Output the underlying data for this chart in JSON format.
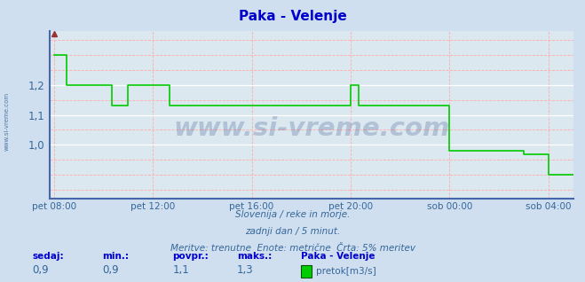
{
  "title": "Paka - Velenje",
  "title_color": "#0000cc",
  "bg_color": "#d0dff0",
  "plot_bg_color": "#dce8f0",
  "line_color": "#00cc00",
  "grid_color_solid": "#ffffff",
  "grid_color_dashed": "#ffaaaa",
  "axis_color": "#4466aa",
  "tick_color": "#336699",
  "x_labels": [
    "pet 08:00",
    "pet 12:00",
    "pet 16:00",
    "pet 20:00",
    "sob 00:00",
    "sob 04:00"
  ],
  "x_ticks": [
    0,
    48,
    96,
    144,
    192,
    240
  ],
  "y_ticks": [
    1.0,
    1.1,
    1.2
  ],
  "ylim": [
    0.82,
    1.38
  ],
  "xlim": [
    -2,
    252
  ],
  "subtitle1": "Slovenija / reke in morje.",
  "subtitle2": "zadnji dan / 5 minut.",
  "subtitle3": "Meritve: trenutne  Enote: metrične  Črta: 5% meritev",
  "footer_labels": [
    "sedaj:",
    "min.:",
    "povpr.:",
    "maks.:",
    "Paka - Velenje"
  ],
  "footer_values": [
    "0,9",
    "0,9",
    "1,1",
    "1,3"
  ],
  "legend_label": "pretok[m3/s]",
  "legend_color": "#00cc00",
  "watermark": "www.si-vreme.com",
  "side_label": "www.si-vreme.com",
  "x_data": [
    0,
    6,
    6,
    28,
    28,
    36,
    36,
    56,
    56,
    76,
    76,
    144,
    144,
    148,
    148,
    192,
    192,
    228,
    228,
    240,
    240,
    252
  ],
  "y_data": [
    1.3,
    1.3,
    1.2,
    1.2,
    1.13,
    1.13,
    1.2,
    1.2,
    1.13,
    1.13,
    1.13,
    1.13,
    1.2,
    1.2,
    1.13,
    1.13,
    0.98,
    0.98,
    0.97,
    0.97,
    0.9,
    0.9
  ]
}
